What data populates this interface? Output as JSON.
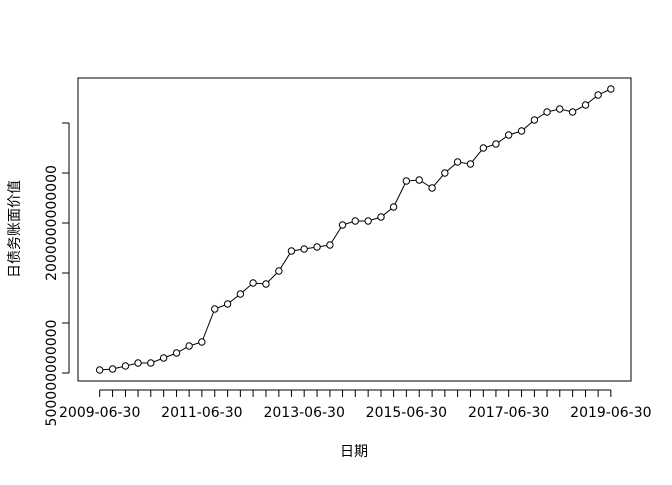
{
  "chart_data": {
    "type": "line",
    "x_label": "日期",
    "y_label": "日债务账面价值",
    "x": [
      "2009-06-30",
      "2009-09-30",
      "2009-12-31",
      "2010-03-31",
      "2010-06-30",
      "2010-09-30",
      "2010-12-31",
      "2011-03-31",
      "2011-06-30",
      "2011-09-30",
      "2011-12-31",
      "2012-03-31",
      "2012-06-30",
      "2012-09-30",
      "2012-12-31",
      "2013-03-31",
      "2013-06-30",
      "2013-09-30",
      "2013-12-31",
      "2014-03-31",
      "2014-06-30",
      "2014-09-30",
      "2014-12-31",
      "2015-03-31",
      "2015-06-30",
      "2015-09-30",
      "2015-12-31",
      "2016-03-31",
      "2016-06-30",
      "2016-09-30",
      "2016-12-31",
      "2017-03-31",
      "2017-06-30",
      "2017-09-30",
      "2017-12-31",
      "2018-03-31",
      "2018-06-30",
      "2018-09-30",
      "2018-12-31",
      "2019-03-31",
      "2019-06-30"
    ],
    "series": [
      {
        "color": "#000000",
        "values": [
          530000000000,
          540000000000,
          570000000000,
          600000000000,
          600000000000,
          650000000000,
          700000000000,
          770000000000,
          810000000000,
          1140000000000,
          1190000000000,
          1290000000000,
          1400000000000,
          1390000000000,
          1520000000000,
          1720000000000,
          1740000000000,
          1760000000000,
          1780000000000,
          1980000000000,
          2020000000000,
          2020000000000,
          2060000000000,
          2160000000000,
          2420000000000,
          2430000000000,
          2350000000000,
          2500000000000,
          2610000000000,
          2590000000000,
          2750000000000,
          2790000000000,
          2880000000000,
          2920000000000,
          3030000000000,
          3110000000000,
          3140000000000,
          3110000000000,
          3180000000000,
          3280000000000,
          3340000000000
        ]
      }
    ],
    "xlim": [
      "2009-01-26",
      "2019-11-21"
    ],
    "xticks": [
      "2009-06-30",
      "2011-06-30",
      "2013-06-30",
      "2015-06-30",
      "2017-06-30",
      "2019-06-30"
    ],
    "ylim": [
      420000000000,
      3450000000000
    ],
    "yticks": [
      500000000000,
      {
        "value": 1000000000000,
        "label": null
      },
      {
        "value": 1500000000000,
        "label": null
      },
      2000000000000,
      {
        "value": 2500000000000,
        "label": null
      },
      {
        "value": 3000000000000,
        "label": null
      }
    ]
  }
}
